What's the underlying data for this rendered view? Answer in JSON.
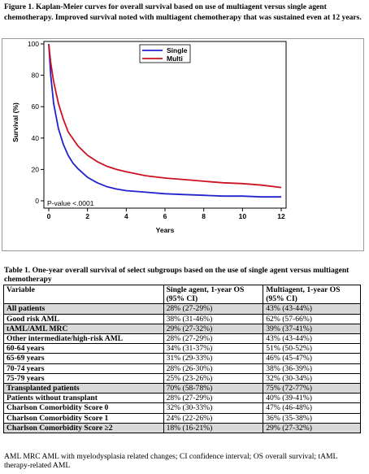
{
  "figure": {
    "caption": "Figure 1. Kaplan-Meier curves for overall survival based on use of multiagent versus single agent chemotherapy. Improved survival noted with multiagent chemotherapy that was sustained even at 12 years."
  },
  "chart_data": {
    "type": "line",
    "xlabel": "Years",
    "ylabel": "Survival (%)",
    "xlim": [
      0,
      12
    ],
    "ylim": [
      0,
      100
    ],
    "xticks": [
      0,
      2,
      4,
      6,
      8,
      10,
      12
    ],
    "yticks": [
      0,
      20,
      40,
      60,
      80,
      100
    ],
    "legend_position": "top-center",
    "annotation": "P-value  <.0001",
    "grid": false,
    "series": [
      {
        "name": "Single",
        "color": "#2222cc",
        "x": [
          0,
          0.1,
          0.25,
          0.5,
          0.75,
          1,
          1.25,
          1.5,
          2,
          2.5,
          3,
          3.5,
          4,
          5,
          6,
          7,
          8,
          9,
          10,
          11,
          12
        ],
        "y": [
          100,
          80,
          62,
          46,
          36,
          29,
          24,
          20.5,
          15,
          11.5,
          9,
          7.5,
          6.5,
          5.5,
          4.5,
          4,
          3.5,
          3,
          3,
          2.5,
          2.5
        ]
      },
      {
        "name": "Multi",
        "color": "#cc1122",
        "x": [
          0,
          0.1,
          0.25,
          0.5,
          0.75,
          1,
          1.5,
          2,
          2.5,
          3,
          3.5,
          4,
          5,
          6,
          7,
          8,
          9,
          10,
          11,
          12
        ],
        "y": [
          100,
          88,
          76,
          62,
          52,
          44,
          35,
          29,
          25,
          22,
          20,
          18.5,
          16,
          14.5,
          13.5,
          12.5,
          11.5,
          11,
          10,
          8.5
        ]
      }
    ]
  },
  "table": {
    "caption": "Table 1. One-year overall survival of select subgroups based on the use of single agent versus multiagent chemotherapy",
    "headers": [
      "Variable",
      "Single agent, 1-year OS (95% CI)",
      "Multiagent, 1-year OS (95% CI)"
    ],
    "rows": [
      [
        "All patients",
        "28% (27-29%)",
        "43% (43-44%)"
      ],
      [
        "Good risk AML",
        "38% (31-46%)",
        "62% (57-66%)"
      ],
      [
        "tAML/AML MRC",
        "29% (27-32%)",
        "39% (37-41%)"
      ],
      [
        "Other intermediate/high-risk AML",
        "28% (27-29%)",
        "43% (43-44%)"
      ],
      [
        "60-64 years",
        "34% (31-37%)",
        "51% (50-52%)"
      ],
      [
        "65-69 years",
        "31% (29-33%)",
        "46% (45-47%)"
      ],
      [
        "70-74 years",
        "28% (26-30%)",
        "38% (36-39%)"
      ],
      [
        "75-79 years",
        "25% (23-26%)",
        "32% (30-34%)"
      ],
      [
        "Transplanted patients",
        "70% (58-78%)",
        "75% (72-77%)"
      ],
      [
        "Patients without transplant",
        "28% (27-29%)",
        "40% (39-41%)"
      ],
      [
        "Charlson Comorbidity Score 0",
        "32% (30-33%)",
        "47% (46-48%)"
      ],
      [
        "Charlson Comorbidity Score 1",
        "24% (22-26%)",
        "36% (35-38%)"
      ],
      [
        "Charlson Comorbidity Score ≥2",
        "18% (16-21%)",
        "29% (27-32%)"
      ]
    ],
    "shaded_rows": [
      0,
      2,
      8,
      12
    ],
    "footnote": "AML MRC AML with myelodysplasia related changes; CI confidence interval; OS overall survival; tAML therapy-related AML"
  }
}
